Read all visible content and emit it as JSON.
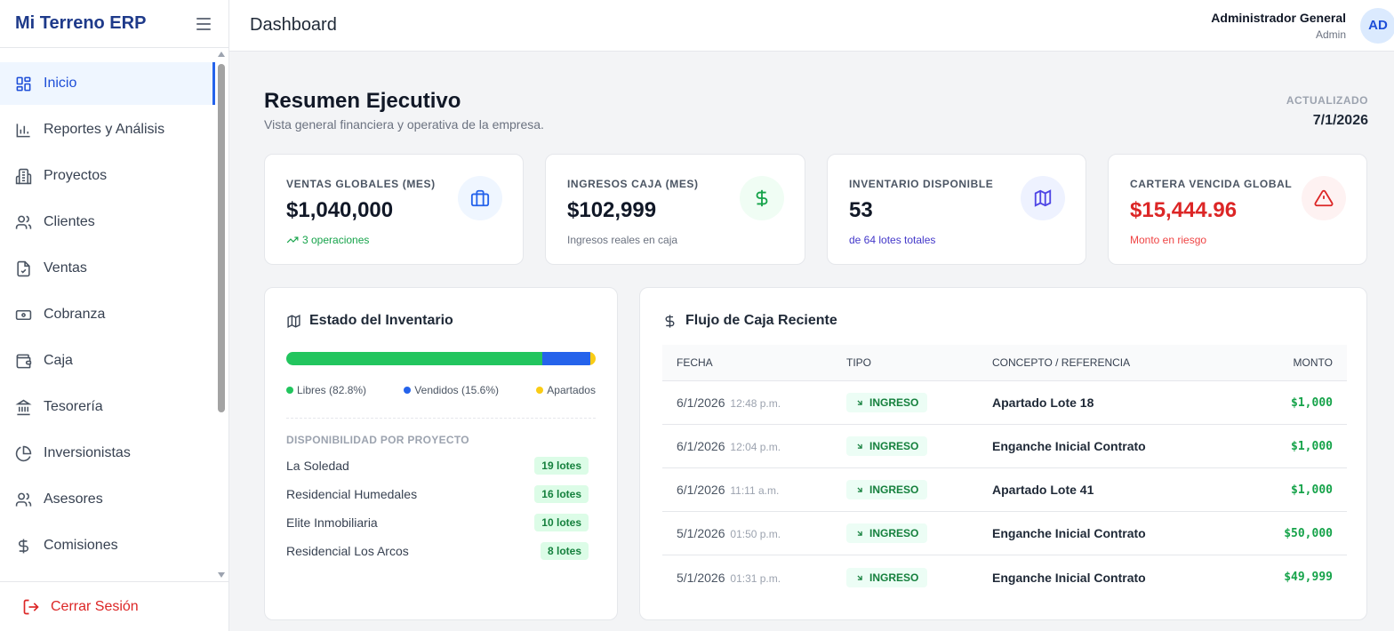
{
  "sidebar": {
    "brand": "Mi Terreno ERP",
    "items": [
      {
        "label": "Inicio",
        "icon": "grid-icon"
      },
      {
        "label": "Reportes y Análisis",
        "icon": "bar-chart-icon"
      },
      {
        "label": "Proyectos",
        "icon": "building-icon"
      },
      {
        "label": "Clientes",
        "icon": "users-icon"
      },
      {
        "label": "Ventas",
        "icon": "file-check-icon"
      },
      {
        "label": "Cobranza",
        "icon": "banknote-icon"
      },
      {
        "label": "Caja",
        "icon": "wallet-icon"
      },
      {
        "label": "Tesorería",
        "icon": "bank-icon"
      },
      {
        "label": "Inversionistas",
        "icon": "pie-chart-icon"
      },
      {
        "label": "Asesores",
        "icon": "users-icon"
      },
      {
        "label": "Comisiones",
        "icon": "dollar-icon"
      }
    ],
    "logout": "Cerrar Sesión"
  },
  "topbar": {
    "title": "Dashboard",
    "user_name": "Administrador General",
    "user_role": "Admin",
    "avatar": "AD"
  },
  "header": {
    "title": "Resumen Ejecutivo",
    "subtitle": "Vista general financiera y operativa de la empresa.",
    "updated_label": "ACTUALIZADO",
    "updated_date": "7/1/2026"
  },
  "stats": [
    {
      "label": "VENTAS GLOBALES (MES)",
      "value": "$1,040,000",
      "foot": "3 operaciones",
      "icon": "briefcase-icon"
    },
    {
      "label": "INGRESOS CAJA (MES)",
      "value": "$102,999",
      "foot": "Ingresos reales en caja",
      "icon": "dollar-icon"
    },
    {
      "label": "INVENTARIO DISPONIBLE",
      "value": "53",
      "foot": "de 64 lotes totales",
      "icon": "map-icon"
    },
    {
      "label": "CARTERA VENCIDA GLOBAL",
      "value": "$15,444.96",
      "foot": "Monto en riesgo",
      "icon": "alert-triangle-icon"
    }
  ],
  "inventory": {
    "title": "Estado del Inventario",
    "bar": {
      "libres": 82.8,
      "vendidos": 15.6,
      "apartados": 1.6
    },
    "legend": {
      "libres": "Libres (82.8%)",
      "vendidos": "Vendidos (15.6%)",
      "apartados": "Apartados"
    },
    "availability_title": "DISPONIBILIDAD POR PROYECTO",
    "projects": [
      {
        "name": "La Soledad",
        "lots": "19 lotes"
      },
      {
        "name": "Residencial Humedales",
        "lots": "16 lotes"
      },
      {
        "name": "Elite Inmobiliaria",
        "lots": "10 lotes"
      },
      {
        "name": "Residencial Los Arcos",
        "lots": "8 lotes"
      }
    ]
  },
  "cashflow": {
    "title": "Flujo de Caja Reciente",
    "headers": {
      "date": "FECHA",
      "type": "TIPO",
      "concept": "CONCEPTO / REFERENCIA",
      "amount": "MONTO"
    },
    "rows": [
      {
        "date": "6/1/2026",
        "time": "12:48 p.m.",
        "type": "INGRESO",
        "concept": "Apartado Lote 18",
        "amount": "$1,000"
      },
      {
        "date": "6/1/2026",
        "time": "12:04 p.m.",
        "type": "INGRESO",
        "concept": "Enganche Inicial Contrato",
        "amount": "$1,000"
      },
      {
        "date": "6/1/2026",
        "time": "11:11 a.m.",
        "type": "INGRESO",
        "concept": "Apartado Lote 41",
        "amount": "$1,000"
      },
      {
        "date": "5/1/2026",
        "time": "01:50 p.m.",
        "type": "INGRESO",
        "concept": "Enganche Inicial Contrato",
        "amount": "$50,000"
      },
      {
        "date": "5/1/2026",
        "time": "01:31 p.m.",
        "type": "INGRESO",
        "concept": "Enganche Inicial Contrato",
        "amount": "$49,999"
      }
    ]
  },
  "colors": {
    "primary": "#2563eb",
    "brand": "#1e3a8a",
    "green": "#22c55e",
    "blue": "#2563eb",
    "yellow": "#facc15",
    "danger": "#dc2626"
  }
}
